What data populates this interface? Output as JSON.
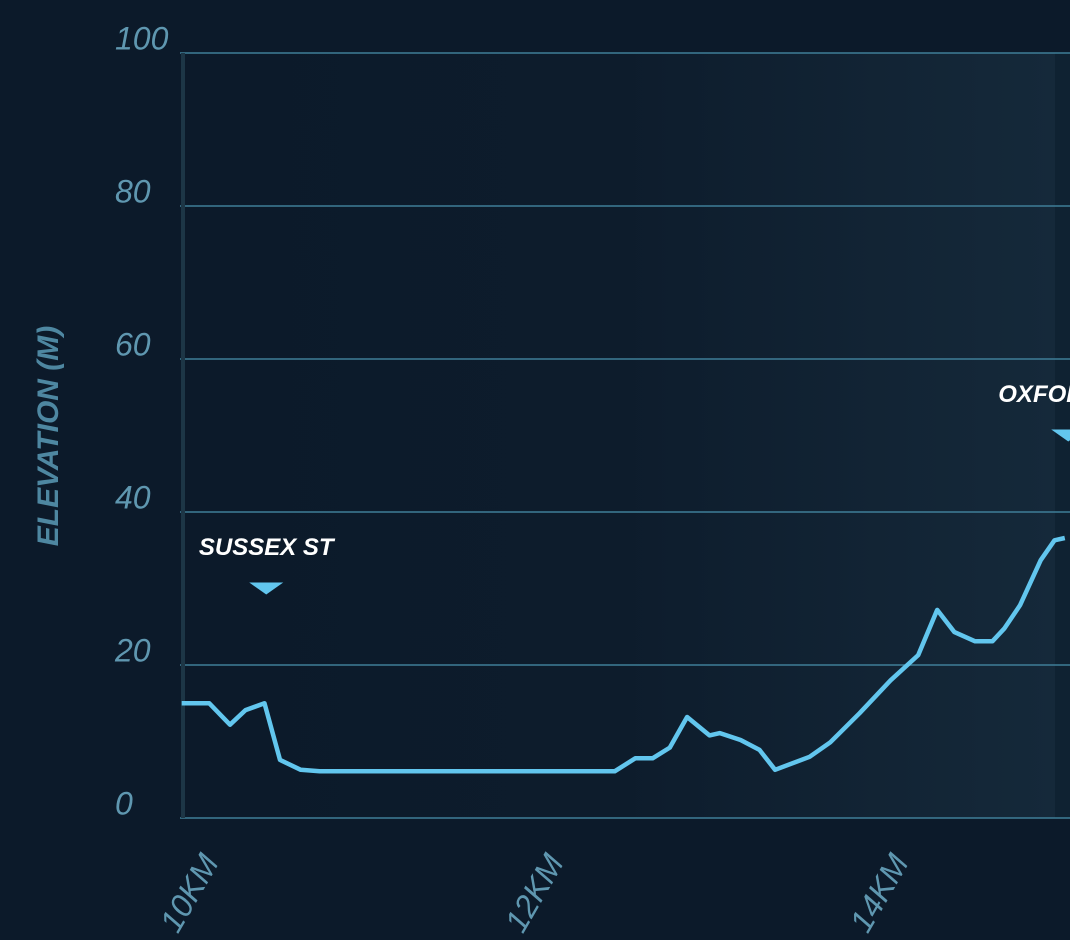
{
  "chart_data": {
    "type": "line",
    "y_label": "ELEVATION (M)",
    "x": [
      9.91,
      10.07,
      10.19,
      10.28,
      10.39,
      10.48,
      10.6,
      10.71,
      12.42,
      12.54,
      12.64,
      12.74,
      12.84,
      12.97,
      13.03,
      13.15,
      13.26,
      13.35,
      13.55,
      13.67,
      13.84,
      14.02,
      14.18,
      14.29,
      14.39,
      14.51,
      14.61,
      14.68,
      14.77,
      14.89,
      14.97,
      15.03
    ],
    "series": [
      {
        "color": "#62c6ee",
        "values": [
          15,
          15,
          12.2,
          14.1,
          15,
          7.6,
          6.3,
          6.1,
          6.1,
          7.8,
          7.8,
          9.2,
          13.2,
          10.8,
          11.1,
          10.2,
          8.9,
          6.3,
          8,
          9.9,
          13.7,
          18,
          21.3,
          27.2,
          24.3,
          23.1,
          23.1,
          24.8,
          27.8,
          33.7,
          36.3,
          36.6
        ]
      }
    ],
    "xlim": [
      9.9,
      15.06
    ],
    "xticks": [
      {
        "value": 10,
        "label": "10KM"
      },
      {
        "value": 12,
        "label": "12KM"
      },
      {
        "value": 14,
        "label": "14KM"
      }
    ],
    "ylim": [
      0,
      100
    ],
    "yticks": [
      0,
      20,
      40,
      60,
      80,
      100
    ],
    "grid": true,
    "annotations": [
      {
        "text": "SUSSEX ST",
        "x": 10.4,
        "y": 30
      },
      {
        "text": "OXFORD ST",
        "x": 15.05,
        "y": 50
      }
    ]
  }
}
